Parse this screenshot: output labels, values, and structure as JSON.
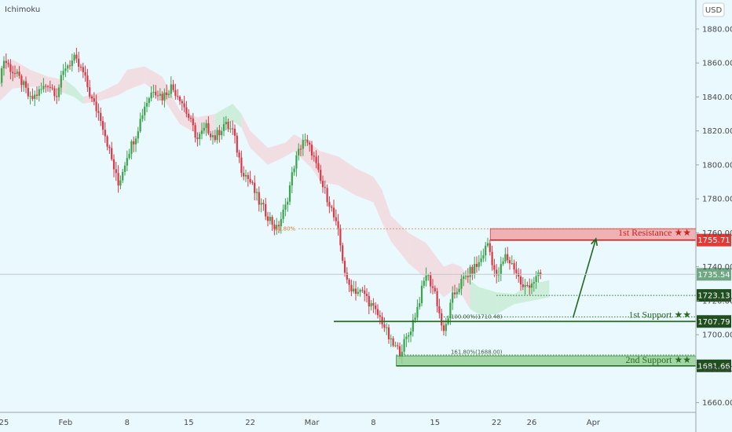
{
  "indicator_label": "Ichimoku",
  "currency_button": "USD",
  "chart_data": {
    "type": "candlestick",
    "y_axis_ticks": [
      1660,
      1680,
      1700,
      1720,
      1740,
      1760,
      1780,
      1800,
      1820,
      1840,
      1860,
      1880
    ],
    "ylim": [
      1656,
      1890
    ],
    "x_axis_labels": [
      {
        "label": "25",
        "day": 0
      },
      {
        "label": "Feb",
        "day": 7
      },
      {
        "label": "8",
        "day": 14
      },
      {
        "label": "15",
        "day": 21
      },
      {
        "label": "22",
        "day": 28
      },
      {
        "label": "Mar",
        "day": 35
      },
      {
        "label": "8",
        "day": 42
      },
      {
        "label": "15",
        "day": 49
      },
      {
        "label": "22",
        "day": 56
      },
      {
        "label": "26",
        "day": 60
      },
      {
        "label": "Apr",
        "day": 67
      }
    ],
    "levels": {
      "resistance_1": {
        "label": "1st Resistance ★★",
        "value": 1755.71,
        "tag": "1755.71",
        "zone": [
          1755.71,
          1762.4
        ]
      },
      "current_price": {
        "value": 1735.54,
        "tag": "1735.54"
      },
      "level_1723": {
        "value": 1723.13,
        "tag": "1723.13"
      },
      "support_1": {
        "label": "1st Support ★★",
        "value": 1707.79,
        "tag": "1707.79"
      },
      "support_2": {
        "label": "2nd Support ★★",
        "value": 1681.66,
        "tag": "1681.66",
        "zone": [
          1681.66,
          1687.5
        ]
      }
    },
    "fib_levels": [
      {
        "label": "61.80%",
        "value": 1762.4
      },
      {
        "label": "100.00%(1710.48)",
        "value": 1710.48
      },
      {
        "label": "161.80%(1688.00)",
        "value": 1688.0
      }
    ],
    "projection_arrow": {
      "from": 1710.0,
      "to": 1756.5
    },
    "price_path": [
      [
        -1,
        1840
      ],
      [
        0,
        1862
      ],
      [
        1,
        1855
      ],
      [
        2,
        1849
      ],
      [
        3,
        1838
      ],
      [
        4,
        1843
      ],
      [
        5,
        1848
      ],
      [
        6,
        1842
      ],
      [
        7,
        1858
      ],
      [
        8,
        1862
      ],
      [
        9,
        1854
      ],
      [
        10,
        1838
      ],
      [
        11,
        1828
      ],
      [
        12,
        1808
      ],
      [
        13,
        1788
      ],
      [
        14,
        1806
      ],
      [
        15,
        1818
      ],
      [
        16,
        1835
      ],
      [
        17,
        1845
      ],
      [
        18,
        1840
      ],
      [
        19,
        1846
      ],
      [
        20,
        1840
      ],
      [
        21,
        1828
      ],
      [
        22,
        1815
      ],
      [
        23,
        1822
      ],
      [
        24,
        1816
      ],
      [
        25,
        1824
      ],
      [
        26,
        1820
      ],
      [
        27,
        1798
      ],
      [
        28,
        1790
      ],
      [
        29,
        1778
      ],
      [
        30,
        1770
      ],
      [
        31,
        1762
      ],
      [
        32,
        1775
      ],
      [
        33,
        1800
      ],
      [
        34,
        1815
      ],
      [
        35,
        1808
      ],
      [
        36,
        1790
      ],
      [
        37,
        1778
      ],
      [
        38,
        1760
      ],
      [
        39,
        1730
      ],
      [
        40,
        1726
      ],
      [
        41,
        1724
      ],
      [
        42,
        1715
      ],
      [
        43,
        1708
      ],
      [
        44,
        1695
      ],
      [
        45,
        1690
      ],
      [
        46,
        1700
      ],
      [
        47,
        1716
      ],
      [
        48,
        1736
      ],
      [
        49,
        1725
      ],
      [
        50,
        1700
      ],
      [
        51,
        1722
      ],
      [
        52,
        1731
      ],
      [
        53,
        1737
      ],
      [
        54,
        1742
      ],
      [
        55,
        1754
      ],
      [
        56,
        1733
      ],
      [
        57,
        1746
      ],
      [
        58,
        1740
      ],
      [
        59,
        1727
      ],
      [
        60,
        1731
      ],
      [
        61,
        1735
      ]
    ],
    "cloud": [
      [
        -1,
        1855,
        1835
      ],
      [
        1,
        1862,
        1845
      ],
      [
        3,
        1856,
        1846
      ],
      [
        5,
        1852,
        1846
      ],
      [
        7,
        1850,
        1842
      ],
      [
        8,
        1846,
        1840
      ],
      [
        9,
        1840,
        1836
      ],
      [
        11,
        1843,
        1838
      ],
      [
        13,
        1848,
        1841
      ],
      [
        14,
        1856,
        1844
      ],
      [
        16,
        1858,
        1848
      ],
      [
        18,
        1852,
        1840
      ],
      [
        20,
        1832,
        1824
      ],
      [
        22,
        1828,
        1818
      ],
      [
        24,
        1830,
        1820
      ],
      [
        26,
        1836,
        1826
      ],
      [
        27,
        1830,
        1822
      ],
      [
        28,
        1820,
        1810
      ],
      [
        30,
        1810,
        1800
      ],
      [
        32,
        1813,
        1805
      ],
      [
        33,
        1818,
        1808
      ],
      [
        35,
        1812,
        1798
      ],
      [
        36,
        1808,
        1790
      ],
      [
        38,
        1805,
        1788
      ],
      [
        40,
        1798,
        1782
      ],
      [
        42,
        1793,
        1778
      ],
      [
        43,
        1785,
        1766
      ],
      [
        44,
        1770,
        1755
      ],
      [
        46,
        1760,
        1742
      ],
      [
        48,
        1754,
        1733
      ],
      [
        50,
        1740,
        1722
      ],
      [
        51,
        1742,
        1726
      ],
      [
        52,
        1740,
        1724
      ],
      [
        53,
        1732,
        1715
      ],
      [
        54,
        1728,
        1712
      ],
      [
        56,
        1725,
        1712
      ],
      [
        58,
        1724,
        1718
      ],
      [
        60,
        1730,
        1720
      ],
      [
        62,
        1732,
        1722
      ]
    ]
  }
}
